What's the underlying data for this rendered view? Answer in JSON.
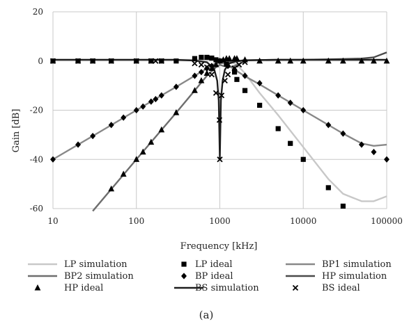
{
  "chart_data": {
    "type": "line",
    "xscale": "log",
    "xlabel": "Frequency [kHz]",
    "ylabel": "Gain [dB]",
    "xlim": [
      10,
      100000
    ],
    "ylim": [
      -60,
      20
    ],
    "x_ticks": [
      10,
      100,
      1000,
      10000,
      100000
    ],
    "x_tick_labels": [
      "10",
      "100",
      "1000",
      "10000",
      "100000"
    ],
    "y_ticks": [
      20,
      0,
      -20,
      -40,
      -60
    ],
    "y_tick_labels": [
      "20",
      "0",
      "-20",
      "-40",
      "-60"
    ],
    "grid": true,
    "legend_position": "bottom",
    "caption": "(a)",
    "series": [
      {
        "name": "LP simulation",
        "style": "line",
        "color": "#c8c8c8",
        "x": [
          10,
          100,
          300,
          600,
          800,
          1000,
          1300,
          1600,
          2000,
          3000,
          5000,
          10000,
          20000,
          30000,
          50000,
          70000,
          100000
        ],
        "y": [
          0.5,
          0.5,
          0.5,
          0.5,
          0.5,
          0.4,
          0.0,
          -1.5,
          -5,
          -13,
          -22,
          -35,
          -48,
          -54,
          -57,
          -57,
          -55
        ]
      },
      {
        "name": "LP ideal",
        "style": "square",
        "x": [
          10,
          20,
          30,
          50,
          100,
          150,
          200,
          300,
          500,
          600,
          700,
          800,
          900,
          1000,
          1200,
          1500,
          1600,
          2000,
          3000,
          5000,
          7000,
          10000,
          20000,
          30000
        ],
        "y": [
          0,
          0,
          0,
          0,
          0,
          0,
          0,
          0,
          1,
          1.5,
          1.5,
          1.2,
          0.5,
          0,
          -1.3,
          -4.5,
          -7.5,
          -12,
          -18,
          -27.5,
          -33.5,
          -40,
          -51.5,
          -59
        ]
      },
      {
        "name": "BP1 simulation",
        "style": "line",
        "color": "#888888",
        "x": [
          10,
          30,
          100,
          200,
          300,
          500,
          700,
          900,
          1000,
          1100,
          1300,
          1500,
          2000,
          3000,
          10000,
          30000,
          50000,
          70000,
          100000
        ],
        "y": [
          -40,
          -30.5,
          -20,
          -14,
          -10.5,
          -6,
          -3,
          -0.8,
          -0.5,
          -0.8,
          -2,
          -3.5,
          -6.2,
          -9.5,
          -20,
          -29.5,
          -33.5,
          -34.5,
          -34
        ]
      },
      {
        "name": "BP2 simulation",
        "style": "line",
        "color": "#6e6e6e",
        "x": [
          30,
          100,
          300,
          500,
          700,
          900,
          1000,
          1100,
          1300,
          1500,
          1800,
          2000
        ],
        "y": [
          -61,
          -40,
          -21,
          -12,
          -6,
          -2.5,
          -1.5,
          -2,
          -2.5,
          -2,
          -0.8,
          -0.3
        ]
      },
      {
        "name": "BP ideal",
        "style": "diamond",
        "x": [
          10,
          20,
          30,
          50,
          70,
          100,
          120,
          150,
          170,
          200,
          300,
          500,
          600,
          700,
          800,
          1000,
          1250,
          1500,
          2000,
          3000,
          5000,
          7000,
          10000,
          20000,
          30000,
          50000,
          70000,
          100000
        ],
        "y": [
          -40,
          -34,
          -30.5,
          -26,
          -23,
          -20,
          -18.5,
          -16.5,
          -15.5,
          -14,
          -10.5,
          -6,
          -4.5,
          -3,
          -2,
          0,
          -2,
          -3.5,
          -6,
          -9,
          -14,
          -17,
          -20,
          -26,
          -29.5,
          -34,
          -37,
          -40
        ]
      },
      {
        "name": "HP simulation",
        "style": "line",
        "color": "#4a4a4a",
        "x": [
          1000,
          2000,
          5000,
          10000,
          20000,
          50000,
          70000,
          100000
        ],
        "y": [
          -0.5,
          0.3,
          0.5,
          0.5,
          0.7,
          1,
          1.5,
          3.5
        ]
      },
      {
        "name": "HP ideal",
        "style": "triangle",
        "x": [
          50,
          70,
          100,
          120,
          150,
          200,
          300,
          500,
          600,
          700,
          800,
          900,
          1000,
          1100,
          1200,
          1300,
          1500,
          1600,
          2000,
          3000,
          5000,
          7000,
          10000,
          20000,
          30000,
          50000,
          70000,
          100000
        ],
        "y": [
          -52,
          -46,
          -40,
          -37,
          -33,
          -28,
          -21,
          -12,
          -8,
          -5,
          -3,
          -1.5,
          0,
          0.5,
          1,
          1,
          1,
          1,
          0.5,
          0,
          0,
          0,
          0,
          0,
          0,
          0,
          0,
          0
        ]
      },
      {
        "name": "BS simulation",
        "style": "line",
        "color": "#1e1e1e",
        "x": [
          10,
          100,
          300,
          500,
          700,
          850,
          930,
          970,
          1000,
          1030,
          1080,
          1150,
          1300,
          1500,
          2000,
          5000,
          100000
        ],
        "y": [
          0.5,
          0.5,
          0.5,
          0.2,
          -0.5,
          -3,
          -8,
          -16,
          -40,
          -16,
          -8,
          -3.5,
          -1,
          -0.3,
          0.3,
          0.5,
          0.5
        ]
      },
      {
        "name": "BS ideal",
        "style": "cross",
        "x": [
          10,
          20,
          30,
          50,
          100,
          150,
          170,
          200,
          500,
          600,
          700,
          800,
          900,
          990,
          1000,
          1050,
          1150,
          1250,
          1500,
          1700,
          2000
        ],
        "y": [
          0,
          0,
          0,
          0,
          0,
          0,
          0,
          0,
          -1,
          -1.5,
          -2.5,
          -5.5,
          -13,
          -24,
          -40,
          -14,
          -8,
          -5.5,
          -3,
          -1.5,
          -0.5
        ]
      }
    ]
  }
}
